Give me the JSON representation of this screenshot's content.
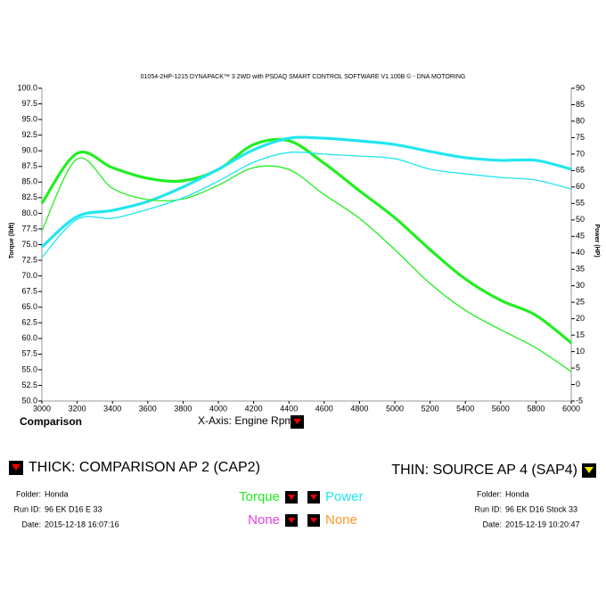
{
  "chart_data": {
    "type": "line",
    "title": "01054-2HP-1215 DYNAPACK™ 3 2WD with PSDAQ SMART CONTROL SOFTWARE V1.100B © - DNA MOTORING",
    "y_label": "Torque (lbft)",
    "y2_label": "Power (HP)",
    "x_label": "X-Axis: Engine Rpm",
    "corner_label": "Comparison",
    "x": [
      3000,
      3200,
      3400,
      3600,
      3800,
      4000,
      4200,
      4400,
      4600,
      4800,
      5000,
      5200,
      5400,
      5600,
      5800,
      6000
    ],
    "xlim": [
      3000,
      6000
    ],
    "xticks": [
      3000,
      3200,
      3400,
      3600,
      3800,
      4000,
      4200,
      4400,
      4600,
      4800,
      5000,
      5200,
      5400,
      5600,
      5800,
      6000
    ],
    "ylim": [
      50,
      100
    ],
    "yticks": [
      {
        "value": 50,
        "label": "50.0"
      },
      {
        "value": 52.5,
        "label": "52.5"
      },
      {
        "value": 55,
        "label": "55.0"
      },
      {
        "value": 57.5,
        "label": "57.5"
      },
      {
        "value": 60,
        "label": "60.0"
      },
      {
        "value": 62.5,
        "label": "62.5"
      },
      {
        "value": 65,
        "label": "65.0"
      },
      {
        "value": 67.5,
        "label": "67.5"
      },
      {
        "value": 70,
        "label": "70.0"
      },
      {
        "value": 72.5,
        "label": "72.5"
      },
      {
        "value": 75,
        "label": "75.0"
      },
      {
        "value": 77.5,
        "label": "77.5"
      },
      {
        "value": 80,
        "label": "80.0"
      },
      {
        "value": 82.5,
        "label": "82.5"
      },
      {
        "value": 85,
        "label": "85.0"
      },
      {
        "value": 87.5,
        "label": "87.5"
      },
      {
        "value": 90,
        "label": "90.0"
      },
      {
        "value": 92.5,
        "label": "92.5"
      },
      {
        "value": 95,
        "label": "95.0"
      },
      {
        "value": 97.5,
        "label": "97.5"
      },
      {
        "value": 100,
        "label": "100.0"
      }
    ],
    "y2lim": [
      -5,
      90
    ],
    "y2ticks": [
      -5,
      0,
      5,
      10,
      15,
      20,
      25,
      30,
      35,
      40,
      45,
      50,
      55,
      60,
      65,
      70,
      75,
      80,
      85,
      90
    ],
    "series": [
      {
        "color": "#22ee22",
        "width": 3.2,
        "values": [
          81.6,
          89.6,
          87.3,
          85.6,
          85.2,
          87,
          91,
          91.6,
          88,
          83.6,
          79.3,
          74.2,
          69.5,
          66.1,
          63.7,
          59.3
        ]
      },
      {
        "color": "#22e6f0",
        "width": 3.2,
        "axis": "y2",
        "values": [
          41.8,
          51,
          52.9,
          55.6,
          60,
          65.4,
          71.3,
          74.8,
          74.8,
          74,
          72.9,
          70.8,
          68.9,
          68.1,
          68.1,
          65.4
        ]
      },
      {
        "color": "#22ee22",
        "width": 1.3,
        "values": [
          77.2,
          88.7,
          84,
          82.2,
          82.3,
          84.5,
          87.3,
          87,
          83,
          79.2,
          74.2,
          68.8,
          64.5,
          61.4,
          58.5,
          54.7
        ]
      },
      {
        "color": "#22e6f0",
        "width": 1.3,
        "axis": "y2",
        "values": [
          38.6,
          50.2,
          50.5,
          53.2,
          56.7,
          61.8,
          67.5,
          70.5,
          70,
          69.4,
          68.6,
          65.4,
          64,
          62.9,
          62.1,
          59.4
        ]
      }
    ]
  },
  "panel": {
    "thick_label": "THICK: COMPARISON AP 2 (CAP2)",
    "thin_label": "THIN: SOURCE AP 4 (SAP4)",
    "channels": [
      {
        "label": "Torque",
        "color": "#22ee22"
      },
      {
        "label": "Power",
        "color": "#22e6f0"
      },
      {
        "label": "None",
        "color": "#e040e0"
      },
      {
        "label": "None",
        "color": "#ff9922"
      }
    ],
    "left_run": {
      "folder_label": "Folder:",
      "folder": "Honda",
      "run_label": "Run ID:",
      "run": "96 EK D16 E 33",
      "date_label": "Date:",
      "date": "2015-12-18 16:07:16"
    },
    "right_run": {
      "folder_label": "Folder:",
      "folder": "Honda",
      "run_label": "Run ID:",
      "run": "96 EK D16 Stock 33",
      "date_label": "Date:",
      "date": "2015-12-19 10:20:47"
    }
  }
}
